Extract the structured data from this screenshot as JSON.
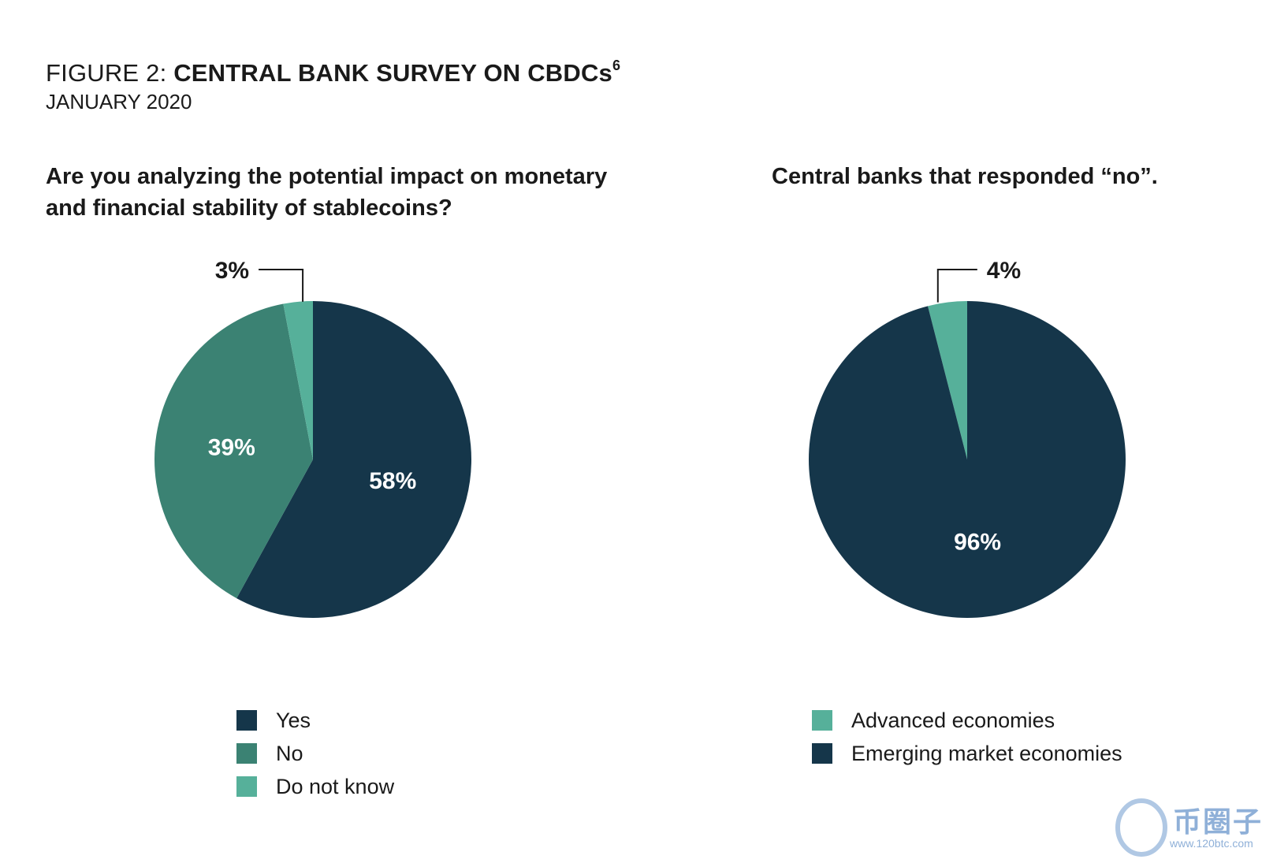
{
  "figure": {
    "title_prefix": "FIGURE 2: ",
    "title_main": "CENTRAL BANK SURVEY ON CBDCs",
    "footnote": "6",
    "date": "JANUARY 2020"
  },
  "colors": {
    "dark_navy": "#15364a",
    "mid_green": "#3b8273",
    "light_green": "#56b09a",
    "leader": "#1a1a1a"
  },
  "chart_data": [
    {
      "type": "pie",
      "title": "Are you analyzing the potential impact on monetary and financial stability of stablecoins?",
      "categories": [
        "Yes",
        "No",
        "Do not know"
      ],
      "values": [
        58,
        39,
        3
      ],
      "labels": [
        "58%",
        "39%",
        "3%"
      ],
      "colors": [
        "#15364a",
        "#3b8273",
        "#56b09a"
      ],
      "legend_position": "bottom"
    },
    {
      "type": "pie",
      "title": "Central banks that responded “no”.",
      "categories": [
        "Advanced economies",
        "Emerging market economies"
      ],
      "values": [
        4,
        96
      ],
      "labels": [
        "4%",
        "96%"
      ],
      "colors": [
        "#56b09a",
        "#15364a"
      ],
      "legend_position": "bottom"
    }
  ],
  "watermark": {
    "text": "币圈子",
    "url": "www.120btc.com"
  }
}
